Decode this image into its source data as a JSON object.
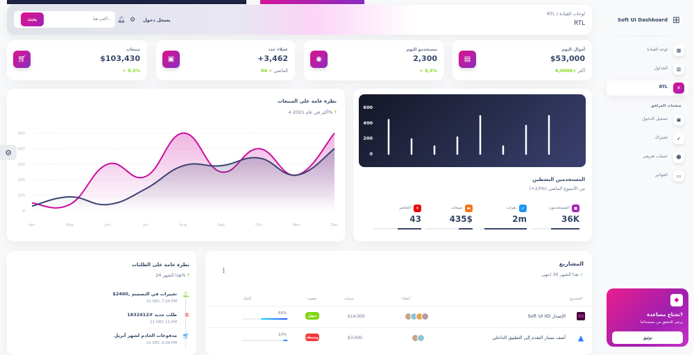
{
  "navbar": {
    "breadcrumb_root": "لوحات القيادة",
    "breadcrumb_sep": "/",
    "breadcrumb_current": "RTL",
    "page_title": "RTL",
    "search_placeholder": "أكتب هنا...",
    "search_button": "بحث",
    "signin": "يسجل دخول"
  },
  "stats": [
    {
      "label": "أموال اليوم",
      "value": "$53,000",
      "change": "+$4,000",
      "change_note": "أكثر",
      "icon": "money-icon"
    },
    {
      "label": "مستخدمو اليوم",
      "value": "2,300",
      "change": "+ 5,3%",
      "change_note": "",
      "icon": "globe-icon"
    },
    {
      "label": "عملاء جدد",
      "value": "+3,462",
      "change": "+ 94",
      "change_note": "الماضي",
      "icon": "document-icon"
    },
    {
      "label": "مبيعات",
      "value": "$103,430",
      "change": "+ 5.3%",
      "change_note": "",
      "icon": "cart-icon"
    }
  ],
  "sidebar": {
    "brand": "Soft UI Dashboard",
    "section_header": "صفحات المرافق",
    "items": [
      {
        "label": "لوحة القيادة",
        "icon": "shop-icon"
      },
      {
        "label": "الجداول",
        "icon": "office-icon"
      },
      {
        "label": "RTL",
        "icon": "tools-icon",
        "active": true
      },
      {
        "label": "تسجيل الدخول",
        "icon": "document-icon"
      },
      {
        "label": "اشتراك",
        "icon": "rocket-icon"
      },
      {
        "label": "حساب تعريفي",
        "icon": "user-icon"
      },
      {
        "label": "الفواتير",
        "icon": "credit-card-icon"
      }
    ]
  },
  "help": {
    "title": "تحتاج مساعدة?",
    "text": "يرجى التحقق من مستنداتنا",
    "button": "توثيق"
  },
  "active_users": {
    "title": "المستخدمين النشطين",
    "subtitle": "(+23%) من الأسبوع الماضي",
    "items": [
      {
        "label": "المستخدمون",
        "value": "36K",
        "progress": 60,
        "color": "#a421b8"
      },
      {
        "label": "نقرات",
        "value": "2m",
        "progress": 90,
        "color": "#2196f3"
      },
      {
        "label": "مبيعات",
        "value": "435$",
        "progress": 30,
        "color": "#f97316"
      },
      {
        "label": "العناصر",
        "value": "43",
        "progress": 50,
        "color": "#ea0606"
      }
    ]
  },
  "sales": {
    "title": "نظرة عامة على المبيعات",
    "subtitle_pct": "4%",
    "subtitle": "أكثر في عام 2021"
  },
  "chart_data": [
    {
      "type": "bar",
      "values": [
        440,
        190,
        100,
        215,
        490,
        100,
        365,
        490
      ],
      "yticks": [
        0,
        200,
        400,
        600
      ],
      "ylim": [
        0,
        600
      ],
      "grid": false,
      "color": "#ffffff"
    },
    {
      "type": "area",
      "categories": [
        "Apr",
        "May",
        "Jun",
        "Jul",
        "Aug",
        "Sep",
        "Oct",
        "Nov",
        "Dec"
      ],
      "yticks": [
        0,
        100,
        200,
        300,
        400,
        500
      ],
      "ylim": [
        0,
        500
      ],
      "grid": true,
      "series": [
        {
          "values": [
            50,
            40,
            300,
            220,
            500,
            250,
            400,
            230,
            500
          ],
          "color": "#cb0c9f"
        },
        {
          "values": [
            30,
            90,
            40,
            140,
            290,
            290,
            340,
            230,
            400
          ],
          "color": "#3a416f"
        }
      ]
    }
  ],
  "orders": {
    "title": "نظرة عامة على الطلبات",
    "subtitle_pct": "24%",
    "subtitle": "هذا الشهر",
    "items": [
      {
        "title": "$2400, تغييرات في التصميم",
        "date": "22 DEC 7:20 PM",
        "icon": "bell-icon",
        "color": "#82d616"
      },
      {
        "title": "طلب جديد #1832412",
        "date": "21 DEC 11 PM",
        "icon": "html5-icon",
        "color": "#ea0606"
      },
      {
        "title": "مدفوعات الخادم لشهر أبريل",
        "date": "21 DEC 9:34 PM",
        "icon": "cart-icon",
        "color": "#2196f3"
      }
    ]
  },
  "projects": {
    "title": "المشاريع",
    "subtitle_count": "30 انتهى",
    "subtitle": "هذا الشهر",
    "headers": {
      "project": "المشروع",
      "members": "أعضاء",
      "budget": "ميزانية",
      "difficulty": "صعوبة",
      "completion": "إكمال"
    },
    "rows": [
      {
        "name": "Soft UI XD الإصدار",
        "logo": "Xd",
        "members": 4,
        "budget": "$14,000",
        "badge": "سهل",
        "badge_color": "#82d616",
        "completion": "60%",
        "progress": 60
      },
      {
        "name": "أضف مسار التقدم إلى التطبيق الداخلي",
        "logo": "atlassian-icon",
        "members": 2,
        "budget": "$3,000",
        "badge": "وسيطة",
        "badge_color": "#f53939",
        "completion": "10%",
        "progress": 10
      }
    ]
  }
}
